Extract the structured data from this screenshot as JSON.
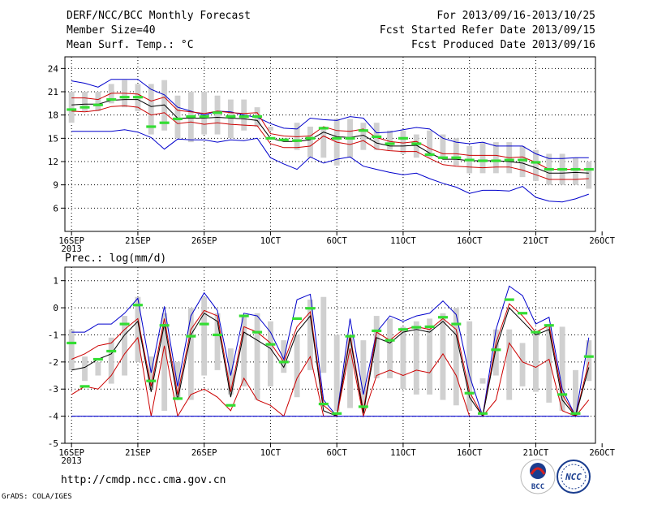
{
  "header": {
    "title": "DERF/NCC/BCC Monthly Forecast",
    "member": "Member Size=40",
    "variable": "Mean Surf. Temp.: °C",
    "range": "For 2013/09/16-2013/10/25",
    "started": "Fcst Started Refer Date 2013/09/15",
    "produced": "Fcst Produced Date 2013/09/16"
  },
  "prec_title": "Prec.: log(mm/d)",
  "footer": {
    "url": "http://cmdp.ncc.cma.gov.cn",
    "grads": "GrADS: COLA/IGES"
  },
  "logos": {
    "bcc": "BCC",
    "ncc": "NCC"
  },
  "colors": {
    "box": "#d0d0d0",
    "median": "#33dd33",
    "envelope": "#0000cc",
    "spread": "#cc0000",
    "mean": "#000000",
    "floor": "#0000cc"
  },
  "chart_data": [
    {
      "type": "box-ensemble",
      "title": "Mean Surf. Temp.: °C",
      "x": [
        0,
        1,
        2,
        3,
        4,
        5,
        6,
        7,
        8,
        9,
        10,
        11,
        12,
        13,
        14,
        15,
        16,
        17,
        18,
        19,
        20,
        21,
        22,
        23,
        24,
        25,
        26,
        27,
        28,
        29,
        30,
        31,
        32,
        33,
        34,
        35,
        36,
        37,
        38,
        39
      ],
      "xlim": [
        -0.5,
        39.5
      ],
      "xticks": [
        0,
        5,
        10,
        15,
        20,
        25,
        30,
        35,
        40
      ],
      "xticklabels": [
        "16SEP",
        "21SEP",
        "26SEP",
        "1OCT",
        "6OCT",
        "11OCT",
        "16OCT",
        "21OCT",
        "26OCT"
      ],
      "xyearlabel": "2013",
      "ylim": [
        3.0,
        25.5
      ],
      "yticks": [
        6,
        9,
        12,
        15,
        18,
        21,
        24
      ],
      "boxes": {
        "low": [
          17.0,
          18.5,
          18.5,
          19.5,
          19.0,
          18.5,
          15.5,
          16.0,
          15.0,
          14.5,
          15.5,
          15.5,
          15.0,
          16.0,
          16.5,
          16.0,
          16.5,
          13.5,
          12.5,
          12.5,
          11.5,
          12.5,
          13.5,
          13.5,
          13.5,
          13.0,
          12.5,
          12.5,
          12.5,
          11.5,
          10.5,
          10.5,
          10.5,
          10.5,
          10.0,
          9.5,
          9.0,
          9.0,
          9.0,
          8.5
        ],
        "high": [
          21.0,
          21.0,
          21.0,
          22.0,
          22.5,
          22.0,
          22.0,
          22.5,
          20.5,
          21.0,
          21.0,
          20.5,
          20.0,
          20.0,
          19.0,
          16.5,
          16.5,
          17.0,
          16.5,
          16.5,
          17.5,
          17.5,
          17.0,
          17.0,
          16.0,
          16.0,
          15.5,
          16.0,
          15.5,
          15.0,
          14.0,
          14.5,
          14.5,
          14.5,
          14.0,
          13.5,
          13.0,
          13.0,
          12.5,
          12.0
        ],
        "median": [
          18.7,
          19.0,
          19.3,
          20.0,
          20.3,
          20.3,
          16.5,
          17.0,
          17.5,
          17.8,
          17.8,
          18.3,
          17.8,
          17.8,
          17.8,
          15.0,
          14.8,
          14.7,
          15.0,
          16.3,
          15.0,
          15.0,
          16.0,
          15.2,
          14.3,
          15.0,
          14.3,
          12.9,
          12.5,
          12.5,
          12.2,
          12.1,
          12.1,
          12.2,
          12.2,
          11.9,
          11.0,
          11.0,
          11.0,
          11.0
        ]
      },
      "series": [
        {
          "name": "ensemble max",
          "color": "#0000cc",
          "values": [
            22.4,
            22.1,
            21.6,
            22.6,
            22.6,
            22.6,
            21.3,
            20.6,
            19.0,
            18.5,
            18.0,
            18.5,
            18.4,
            18.0,
            17.7,
            16.9,
            16.3,
            16.2,
            17.6,
            17.4,
            17.3,
            17.8,
            17.6,
            15.7,
            15.8,
            16.1,
            16.4,
            16.2,
            15.0,
            14.5,
            14.3,
            14.5,
            14.0,
            14.0,
            14.0,
            13.0,
            12.4,
            12.4,
            12.5,
            12.5
          ]
        },
        {
          "name": "upper spread",
          "color": "#cc0000",
          "values": [
            20.2,
            20.2,
            20.0,
            20.8,
            20.8,
            20.7,
            19.8,
            20.3,
            18.6,
            18.4,
            18.2,
            18.5,
            18.3,
            18.2,
            18.3,
            15.6,
            15.3,
            15.2,
            15.3,
            16.5,
            16.0,
            15.9,
            16.2,
            15.1,
            14.6,
            14.4,
            14.6,
            13.7,
            13.0,
            13.0,
            12.8,
            12.8,
            12.8,
            12.5,
            12.6,
            11.9,
            11.0,
            11.0,
            11.0,
            10.9
          ]
        },
        {
          "name": "ensemble mean",
          "color": "#000000",
          "values": [
            19.3,
            19.4,
            19.4,
            19.9,
            20.0,
            20.0,
            19.1,
            19.3,
            17.6,
            17.6,
            17.6,
            17.7,
            17.6,
            17.5,
            17.3,
            15.0,
            14.6,
            14.6,
            14.8,
            15.8,
            15.2,
            15.1,
            15.4,
            14.4,
            14.0,
            14.0,
            14.1,
            13.1,
            12.3,
            12.3,
            12.1,
            12.1,
            12.1,
            12.0,
            11.8,
            11.2,
            10.5,
            10.5,
            10.6,
            10.5
          ]
        },
        {
          "name": "lower spread",
          "color": "#cc0000",
          "values": [
            18.5,
            18.4,
            18.6,
            19.1,
            19.2,
            19.0,
            18.0,
            18.3,
            16.9,
            17.1,
            16.8,
            17.0,
            16.8,
            16.7,
            16.6,
            14.3,
            13.8,
            13.8,
            14.0,
            15.3,
            14.5,
            14.2,
            14.7,
            13.6,
            13.4,
            13.3,
            13.3,
            12.4,
            11.6,
            11.4,
            11.3,
            11.2,
            11.3,
            11.3,
            10.9,
            10.3,
            9.7,
            9.7,
            9.7,
            9.8
          ]
        },
        {
          "name": "ensemble min",
          "color": "#0000cc",
          "values": [
            15.9,
            15.9,
            15.9,
            15.9,
            16.1,
            15.8,
            15.1,
            13.6,
            14.9,
            14.8,
            14.8,
            14.5,
            14.8,
            14.7,
            15.0,
            12.5,
            11.7,
            11.0,
            12.6,
            11.8,
            12.3,
            12.6,
            11.4,
            11.0,
            10.6,
            10.3,
            10.5,
            9.8,
            9.2,
            8.7,
            7.9,
            8.3,
            8.3,
            8.2,
            8.8,
            7.4,
            6.9,
            6.8,
            7.2,
            7.8
          ]
        }
      ]
    },
    {
      "type": "box-ensemble",
      "title": "Prec.: log(mm/d)",
      "x": [
        0,
        1,
        2,
        3,
        4,
        5,
        6,
        7,
        8,
        9,
        10,
        11,
        12,
        13,
        14,
        15,
        16,
        17,
        18,
        19,
        20,
        21,
        22,
        23,
        24,
        25,
        26,
        27,
        28,
        29,
        30,
        31,
        32,
        33,
        34,
        35,
        36,
        37,
        38,
        39
      ],
      "xlim": [
        -0.5,
        39.5
      ],
      "xticks": [
        0,
        5,
        10,
        15,
        20,
        25,
        30,
        35,
        40
      ],
      "xticklabels": [
        "16SEP",
        "21SEP",
        "26SEP",
        "1OCT",
        "6OCT",
        "11OCT",
        "16OCT",
        "21OCT",
        "26OCT"
      ],
      "xyearlabel": "2013",
      "ylim": [
        -5,
        1.5
      ],
      "yticks": [
        -5,
        -4,
        -3,
        -2,
        -1,
        0,
        1
      ],
      "floor": -4,
      "boxes": {
        "low": [
          -2.3,
          -2.7,
          -2.5,
          -2.8,
          -2.5,
          -2.0,
          -3.0,
          -3.8,
          -3.4,
          -3.4,
          -2.5,
          -2.3,
          -3.2,
          -2.9,
          -3.4,
          -2.9,
          -2.4,
          -3.3,
          -2.3,
          -2.4,
          -3.8,
          -3.7,
          -3.6,
          -2.6,
          -2.6,
          -3.0,
          -3.2,
          -3.2,
          -3.4,
          -3.6,
          -3.8,
          -2.8,
          -2.5,
          -3.4,
          -2.9,
          -3.1,
          -3.5,
          -3.8,
          -4.0,
          -2.7
        ],
        "high": [
          -0.8,
          -1.8,
          -2.0,
          -1.1,
          -0.3,
          0.4,
          -1.8,
          -0.2,
          -2.0,
          0.0,
          0.4,
          -0.2,
          -1.5,
          -0.3,
          -0.2,
          -0.5,
          -1.2,
          -1.0,
          0.3,
          0.4,
          -1.0,
          -1.0,
          -1.2,
          -0.3,
          -0.4,
          -0.7,
          -0.5,
          -0.4,
          -0.2,
          0.0,
          -0.5,
          -2.6,
          -0.8,
          -0.8,
          -1.3,
          -0.9,
          -0.6,
          -0.7,
          -2.3,
          -1.2
        ],
        "median": [
          -1.3,
          -2.9,
          -1.9,
          -1.6,
          -0.6,
          0.1,
          -2.7,
          -0.65,
          -3.35,
          -1.05,
          -0.6,
          -1.0,
          -3.6,
          -0.3,
          -0.9,
          -1.35,
          -2.0,
          -0.4,
          -0.02,
          -3.55,
          -3.9,
          -1.05,
          -3.65,
          -0.85,
          -1.2,
          -0.8,
          -0.72,
          -0.7,
          -0.35,
          -0.6,
          -3.15,
          -3.9,
          -1.55,
          0.3,
          -0.2,
          -0.9,
          -0.65,
          -3.2,
          -3.9,
          -1.8
        ]
      },
      "series": [
        {
          "name": "ensemble max",
          "color": "#0000cc",
          "values": [
            -0.9,
            -0.9,
            -0.6,
            -0.6,
            -0.2,
            0.35,
            -2.4,
            0.05,
            -2.9,
            -0.3,
            0.55,
            -0.1,
            -2.5,
            -0.2,
            -0.3,
            -0.9,
            -1.9,
            0.3,
            0.5,
            -3.4,
            -4.0,
            -0.4,
            -3.2,
            -0.9,
            -0.3,
            -0.5,
            -0.3,
            -0.2,
            0.25,
            -0.25,
            -2.5,
            -4.0,
            -0.8,
            0.8,
            0.45,
            -0.6,
            -0.35,
            -3.0,
            -4.0,
            -1.1
          ]
        },
        {
          "name": "upper spread",
          "color": "#cc0000",
          "values": [
            -1.9,
            -1.7,
            -1.4,
            -1.3,
            -0.8,
            -0.4,
            -2.9,
            -0.4,
            -3.2,
            -0.8,
            -0.1,
            -0.3,
            -3.1,
            -0.7,
            -0.9,
            -1.3,
            -2.0,
            -0.7,
            -0.15,
            -3.6,
            -4.0,
            -1.0,
            -3.8,
            -0.9,
            -1.2,
            -0.8,
            -0.7,
            -0.8,
            -0.4,
            -0.8,
            -3.1,
            -4.0,
            -1.3,
            0.15,
            -0.3,
            -0.9,
            -0.65,
            -3.2,
            -4.0,
            -2.0
          ]
        },
        {
          "name": "ensemble mean",
          "color": "#000000",
          "values": [
            -2.3,
            -2.2,
            -1.9,
            -1.7,
            -1.0,
            -0.5,
            -3.1,
            -0.6,
            -3.4,
            -1.0,
            -0.2,
            -0.5,
            -3.3,
            -0.9,
            -1.2,
            -1.5,
            -2.2,
            -0.9,
            -0.3,
            -3.8,
            -4.0,
            -1.1,
            -3.9,
            -1.1,
            -1.3,
            -0.9,
            -0.8,
            -0.9,
            -0.5,
            -1.0,
            -3.3,
            -4.0,
            -1.5,
            0.0,
            -0.5,
            -1.0,
            -0.8,
            -3.4,
            -4.0,
            -2.2
          ]
        },
        {
          "name": "lower spread",
          "color": "#cc0000",
          "values": [
            -3.2,
            -2.9,
            -3.0,
            -2.5,
            -1.7,
            -1.1,
            -4.0,
            -1.4,
            -4.0,
            -3.2,
            -3.0,
            -3.3,
            -3.8,
            -2.6,
            -3.4,
            -3.6,
            -4.0,
            -2.6,
            -1.8,
            -4.0,
            -4.0,
            -1.5,
            -4.0,
            -2.5,
            -2.3,
            -2.5,
            -2.3,
            -2.4,
            -1.7,
            -2.5,
            -4.0,
            -4.0,
            -3.4,
            -1.3,
            -2.0,
            -2.2,
            -1.9,
            -3.8,
            -4.0,
            -3.4
          ]
        },
        {
          "name": "ensemble min",
          "color": "#0000cc",
          "values": [
            -4.0,
            -4.0,
            -4.0,
            -4.0,
            -4.0,
            -4.0,
            -4.0,
            -4.0,
            -4.0,
            -4.0,
            -4.0,
            -4.0,
            -4.0,
            -4.0,
            -4.0,
            -4.0,
            -4.0,
            -4.0,
            -4.0,
            -4.0,
            -4.0,
            -4.0,
            -4.0,
            -4.0,
            -4.0,
            -4.0,
            -4.0,
            -4.0,
            -4.0,
            -4.0,
            -4.0,
            -4.0,
            -4.0,
            -4.0,
            -4.0,
            -4.0,
            -4.0,
            -4.0,
            -4.0,
            -4.0
          ]
        }
      ]
    }
  ]
}
